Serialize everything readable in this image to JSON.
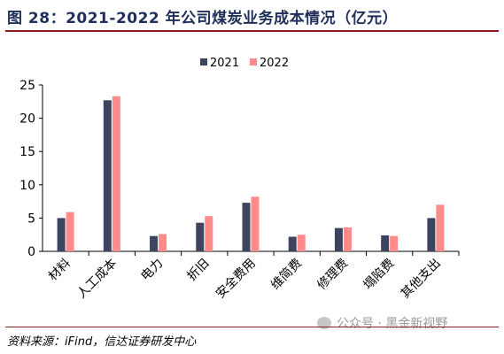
{
  "header": {
    "title": "图 28：2021-2022 年公司煤炭业务成本情况（亿元）"
  },
  "footer": {
    "source": "资料来源：iFind，信达证券研发中心",
    "watermark": "公众号 · 黑金新视野"
  },
  "colors": {
    "series_2021": "#3d4460",
    "series_2022": "#ff8a8a",
    "accent_rule": "#8a1c1c"
  },
  "chart_data": {
    "type": "bar",
    "title": "2021-2022 年公司煤炭业务成本情况（亿元）",
    "xlabel": "",
    "ylabel": "",
    "ylim": [
      0,
      25
    ],
    "yticks": [
      0,
      5,
      10,
      15,
      20,
      25
    ],
    "grid": false,
    "legend": "top-center",
    "categories": [
      "材料",
      "人工成本",
      "电力",
      "折旧",
      "安全费用",
      "维简费",
      "修理费",
      "塌陷费",
      "其他支出"
    ],
    "series": [
      {
        "name": "2021",
        "values": [
          5.0,
          22.7,
          2.3,
          4.3,
          7.3,
          2.2,
          3.5,
          2.4,
          5.0
        ]
      },
      {
        "name": "2022",
        "values": [
          5.9,
          23.3,
          2.6,
          5.3,
          8.2,
          2.5,
          3.6,
          2.3,
          7.0
        ]
      }
    ]
  }
}
